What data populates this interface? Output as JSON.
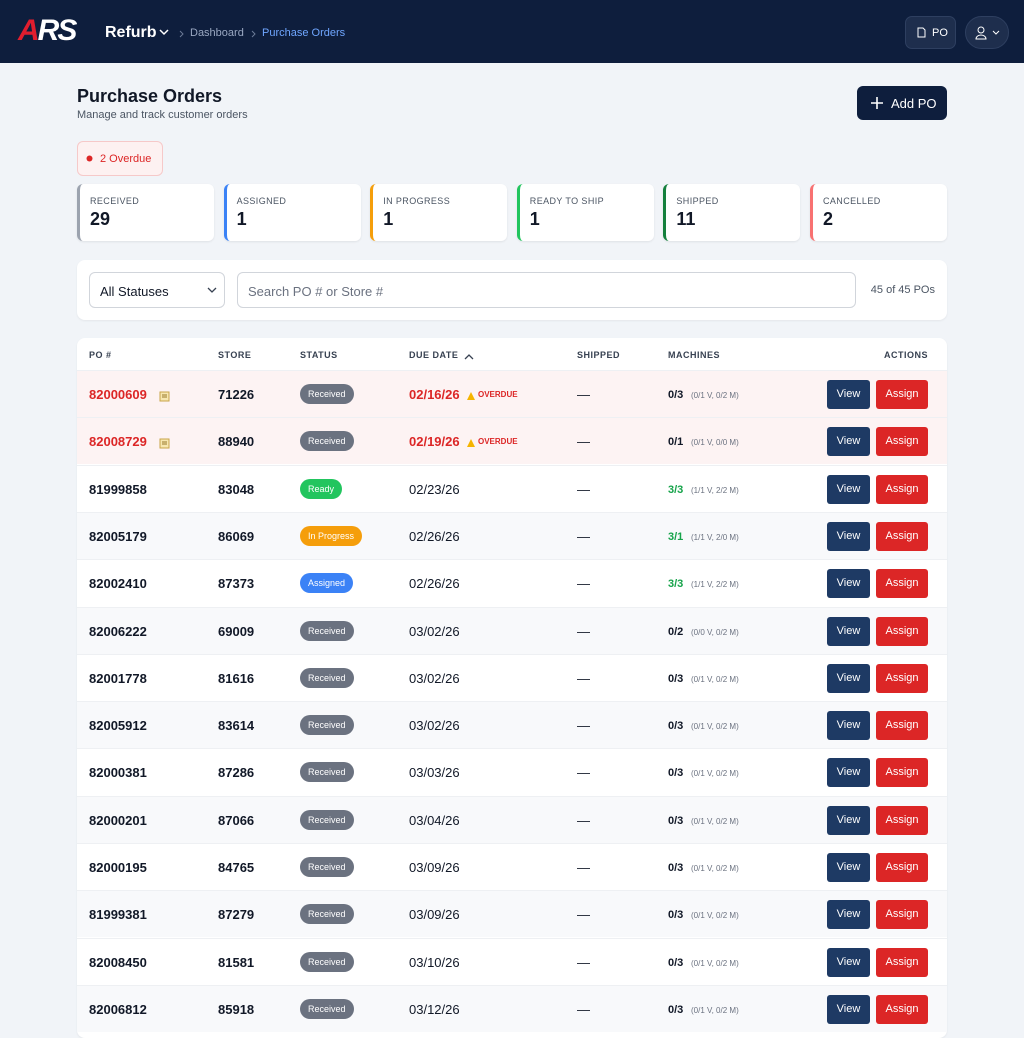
{
  "header": {
    "logo": "ARS",
    "app": "Refurb",
    "breadcrumb": [
      "Dashboard",
      "Purchase Orders"
    ],
    "po_button": "PO"
  },
  "page": {
    "title": "Purchase Orders",
    "subtitle": "Manage and track customer orders",
    "add_button": "Add PO",
    "overdue_badge": "2 Overdue"
  },
  "stats": [
    {
      "label": "RECEIVED",
      "value": 29,
      "color": "#9ca3af"
    },
    {
      "label": "ASSIGNED",
      "value": 1,
      "color": "#3b82f6"
    },
    {
      "label": "IN PROGRESS",
      "value": 1,
      "color": "#f59e0b"
    },
    {
      "label": "READY TO SHIP",
      "value": 1,
      "color": "#22c55e"
    },
    {
      "label": "SHIPPED",
      "value": 11,
      "color": "#15803d"
    },
    {
      "label": "CANCELLED",
      "value": 2,
      "color": "#f87171"
    }
  ],
  "filters": {
    "status": "All Statuses",
    "search_placeholder": "Search PO # or Store #",
    "count": "45 of 45 POs"
  },
  "table": {
    "columns": [
      "PO #",
      "STORE",
      "STATUS",
      "DUE DATE",
      "SHIPPED",
      "MACHINES",
      "ACTIONS"
    ],
    "view_label": "View",
    "assign_label": "Assign",
    "status_colors": {
      "Received": "#6b7280",
      "Ready": "#22c55e",
      "In Progress": "#f59e0b",
      "Assigned": "#3b82f6"
    },
    "rows": [
      {
        "po": "82000609",
        "store": "71226",
        "status": "Received",
        "due": "02/16/26",
        "overdue": "OVERDUE",
        "shipped": "—",
        "machines": "0/3",
        "machines_detail": "(0/1 V, 0/2 M)"
      },
      {
        "po": "82008729",
        "store": "88940",
        "status": "Received",
        "due": "02/19/26",
        "overdue": "OVERDUE",
        "shipped": "—",
        "machines": "0/1",
        "machines_detail": "(0/1 V, 0/0 M)"
      },
      {
        "po": "81999858",
        "store": "83048",
        "status": "Ready",
        "due": "02/23/26",
        "shipped": "—",
        "machines": "3/3",
        "machines_detail": "(1/1 V, 2/2 M)"
      },
      {
        "po": "82005179",
        "store": "86069",
        "status": "In Progress",
        "due": "02/26/26",
        "shipped": "—",
        "machines": "3/1",
        "machines_detail": "(1/1 V, 2/0 M)"
      },
      {
        "po": "82002410",
        "store": "87373",
        "status": "Assigned",
        "due": "02/26/26",
        "shipped": "—",
        "machines": "3/3",
        "machines_detail": "(1/1 V, 2/2 M)"
      },
      {
        "po": "82006222",
        "store": "69009",
        "status": "Received",
        "due": "03/02/26",
        "shipped": "—",
        "machines": "0/2",
        "machines_detail": "(0/0 V, 0/2 M)"
      },
      {
        "po": "82001778",
        "store": "81616",
        "status": "Received",
        "due": "03/02/26",
        "shipped": "—",
        "machines": "0/3",
        "machines_detail": "(0/1 V, 0/2 M)"
      },
      {
        "po": "82005912",
        "store": "83614",
        "status": "Received",
        "due": "03/02/26",
        "shipped": "—",
        "machines": "0/3",
        "machines_detail": "(0/1 V, 0/2 M)"
      },
      {
        "po": "82000381",
        "store": "87286",
        "status": "Received",
        "due": "03/03/26",
        "shipped": "—",
        "machines": "0/3",
        "machines_detail": "(0/1 V, 0/2 M)"
      },
      {
        "po": "82000201",
        "store": "87066",
        "status": "Received",
        "due": "03/04/26",
        "shipped": "—",
        "machines": "0/3",
        "machines_detail": "(0/1 V, 0/2 M)"
      },
      {
        "po": "82000195",
        "store": "84765",
        "status": "Received",
        "due": "03/09/26",
        "shipped": "—",
        "machines": "0/3",
        "machines_detail": "(0/1 V, 0/2 M)"
      },
      {
        "po": "81999381",
        "store": "87279",
        "status": "Received",
        "due": "03/09/26",
        "shipped": "—",
        "machines": "0/3",
        "machines_detail": "(0/1 V, 0/2 M)"
      },
      {
        "po": "82008450",
        "store": "81581",
        "status": "Received",
        "due": "03/10/26",
        "shipped": "—",
        "machines": "0/3",
        "machines_detail": "(0/1 V, 0/2 M)"
      },
      {
        "po": "82006812",
        "store": "85918",
        "status": "Received",
        "due": "03/12/26",
        "shipped": "—",
        "machines": "0/3",
        "machines_detail": "(0/1 V, 0/2 M)"
      }
    ]
  }
}
